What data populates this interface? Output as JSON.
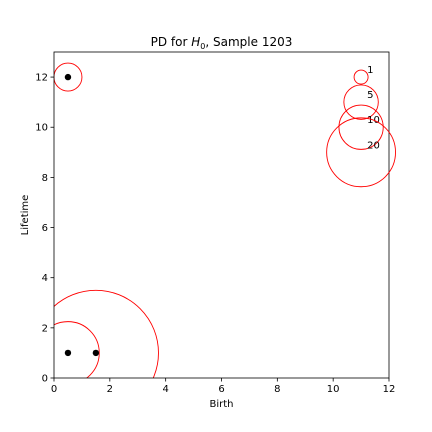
{
  "chart_data": {
    "type": "scatter",
    "title_prefix": "PD for ",
    "title_math": "H",
    "title_sub": "0",
    "title_suffix": ", Sample 1203",
    "xlabel": "Birth",
    "ylabel": "Lifetime",
    "xlim": [
      0,
      12
    ],
    "ylim": [
      0,
      13
    ],
    "xticks": [
      0,
      2,
      4,
      6,
      8,
      10,
      12
    ],
    "yticks": [
      0,
      2,
      4,
      6,
      8,
      10,
      12
    ],
    "grid": false,
    "point_color": "#000000",
    "circle_color": "#ff0000",
    "points": [
      {
        "x": 0.5,
        "y": 12.0,
        "multiplicity": 1
      },
      {
        "x": 0.5,
        "y": 1.0,
        "multiplicity": 5
      },
      {
        "x": 1.5,
        "y": 1.0,
        "multiplicity": 20
      }
    ],
    "size_legend": [
      {
        "label": "1",
        "value": 1
      },
      {
        "label": "5",
        "value": 5
      },
      {
        "label": "10",
        "value": 10
      },
      {
        "label": "20",
        "value": 20
      }
    ],
    "size_legend_placement": "top-right"
  }
}
